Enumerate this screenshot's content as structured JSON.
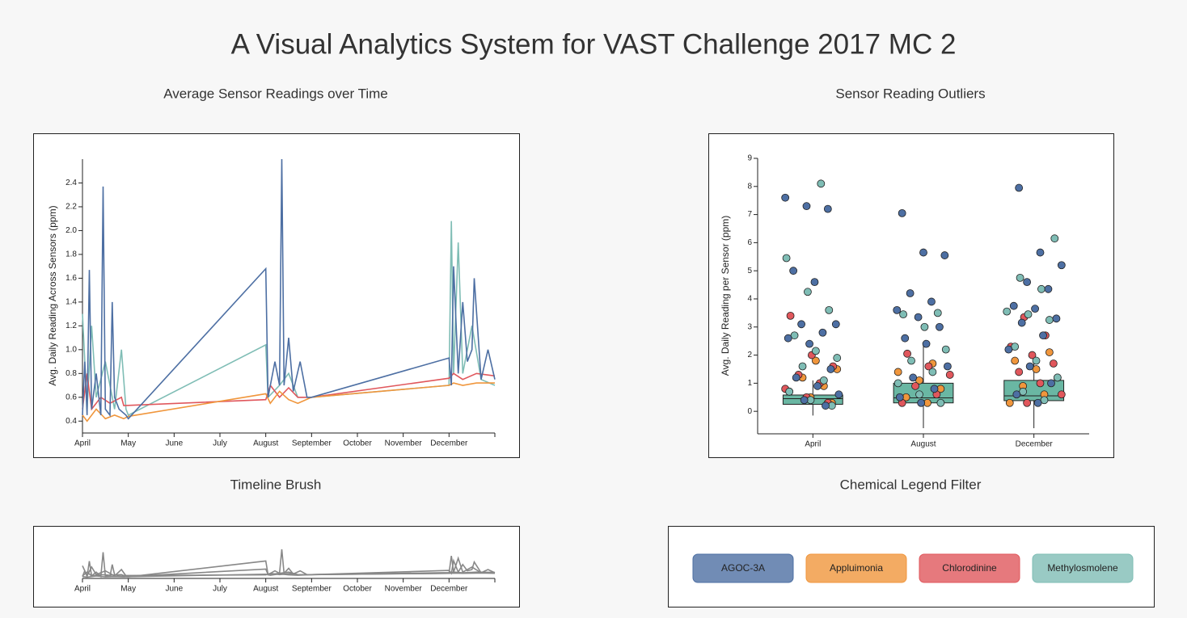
{
  "title": "A Visual Analytics System for VAST Challenge 2017 MC 2",
  "chart_data": [
    {
      "type": "line",
      "title": "Average Sensor Readings over Time",
      "y_label": "Avg. Daily Reading Across Sensors (ppm)",
      "xlim": [
        0,
        9
      ],
      "xticks": [
        {
          "value": 0,
          "label": "April"
        },
        {
          "value": 1,
          "label": "May"
        },
        {
          "value": 2,
          "label": "June"
        },
        {
          "value": 3,
          "label": "July"
        },
        {
          "value": 4,
          "label": "August"
        },
        {
          "value": 5,
          "label": "September"
        },
        {
          "value": 6,
          "label": "October"
        },
        {
          "value": 7,
          "label": "November"
        },
        {
          "value": 8,
          "label": "December"
        }
      ],
      "ylim": [
        0.3,
        2.6
      ],
      "yticks": [
        0.4,
        0.6,
        0.8,
        {
          "value": 1.0,
          "label": "1.0"
        },
        1.2,
        1.4,
        1.6,
        1.8,
        {
          "value": 2.0,
          "label": "2.0"
        },
        2.2,
        2.4
      ],
      "series": [
        {
          "name": "AGOC-3A",
          "color": "#4d6fa3",
          "x": [
            0,
            0.05,
            0.1,
            0.15,
            0.2,
            0.3,
            0.4,
            0.45,
            0.5,
            0.6,
            0.65,
            0.7,
            0.8,
            0.95,
            1.0,
            4.0,
            4.05,
            4.2,
            4.3,
            4.35,
            4.4,
            4.5,
            4.6,
            4.75,
            4.9,
            5.0,
            8.0,
            8.05,
            8.1,
            8.2,
            8.3,
            8.4,
            8.5,
            8.55,
            8.7,
            8.85,
            9.0
          ],
          "values": [
            0.45,
            0.9,
            0.45,
            1.67,
            0.5,
            0.8,
            0.45,
            2.37,
            0.5,
            0.45,
            1.4,
            0.6,
            0.5,
            0.45,
            0.42,
            1.68,
            0.6,
            0.9,
            0.7,
            2.6,
            0.7,
            1.1,
            0.65,
            0.9,
            0.6,
            0.6,
            0.93,
            0.7,
            1.7,
            0.8,
            1.4,
            0.9,
            1.0,
            1.6,
            0.75,
            1.0,
            0.75
          ]
        },
        {
          "name": "Appluimonia",
          "color": "#f0963c",
          "x": [
            0,
            0.1,
            0.3,
            0.5,
            0.7,
            0.9,
            1.0,
            4.0,
            4.1,
            4.3,
            4.5,
            4.7,
            5.0,
            8.0,
            8.1,
            8.3,
            8.6,
            9.0
          ],
          "values": [
            0.45,
            0.4,
            0.5,
            0.42,
            0.45,
            0.42,
            0.44,
            0.63,
            0.55,
            0.65,
            0.58,
            0.55,
            0.6,
            0.7,
            0.72,
            0.7,
            0.72,
            0.72
          ]
        },
        {
          "name": "Chlorodinine",
          "color": "#e0575c",
          "x": [
            0,
            0.1,
            0.2,
            0.4,
            0.6,
            0.85,
            0.9,
            4.0,
            4.1,
            4.3,
            4.5,
            4.7,
            5.0,
            8.0,
            8.1,
            8.3,
            8.6,
            9.0
          ],
          "values": [
            0.5,
            0.8,
            0.5,
            0.6,
            0.55,
            0.6,
            0.53,
            0.58,
            0.7,
            0.6,
            0.68,
            0.6,
            0.6,
            0.76,
            0.8,
            0.75,
            0.8,
            0.78
          ]
        },
        {
          "name": "Methylosmolene",
          "color": "#7fbdb5",
          "x": [
            0,
            0.1,
            0.2,
            0.3,
            0.5,
            0.7,
            0.85,
            0.95,
            1.0,
            4.0,
            4.05,
            4.3,
            4.5,
            4.7,
            5.0,
            8.0,
            8.05,
            8.1,
            8.2,
            8.3,
            8.5,
            8.7,
            9.0
          ],
          "values": [
            1.3,
            0.5,
            1.2,
            0.6,
            0.9,
            0.5,
            1.0,
            0.5,
            0.45,
            1.04,
            0.6,
            0.7,
            0.8,
            0.6,
            0.6,
            0.7,
            2.08,
            0.8,
            1.9,
            0.8,
            1.2,
            0.75,
            0.7
          ]
        }
      ]
    },
    {
      "type": "box",
      "title": "Sensor Reading Outliers",
      "y_label": "Avg. Daily Reading per Sensor (ppm)",
      "categories": [
        "April",
        "August",
        "December"
      ],
      "ylim": [
        -0.8,
        9
      ],
      "yticks": [
        0,
        1,
        2,
        3,
        4,
        5,
        6,
        7,
        8,
        9
      ],
      "box_color": "#6ab7a3",
      "boxes": [
        {
          "whisker_low": -0.15,
          "q1": 0.25,
          "median": 0.45,
          "q3": 0.58,
          "whisker_high": 1.1
        },
        {
          "whisker_low": -0.6,
          "q1": 0.3,
          "median": 0.48,
          "q3": 1.0,
          "whisker_high": 2.4
        },
        {
          "whisker_low": -0.6,
          "q1": 0.38,
          "median": 0.55,
          "q3": 1.1,
          "whisker_high": 2.1
        }
      ],
      "series": [
        {
          "color": "#4d6fa3",
          "values": [
            [
              7.6,
              7.3,
              7.2,
              5.0,
              4.6,
              3.1,
              3.1,
              2.8,
              2.6,
              2.4,
              1.5,
              1.2,
              0.9,
              0.6,
              0.4,
              0.2
            ],
            [
              7.05,
              5.65,
              5.55,
              4.2,
              3.9,
              3.6,
              3.35,
              3.0,
              2.6,
              2.4,
              1.6,
              1.2,
              0.8,
              0.5,
              0.3
            ],
            [
              7.95,
              5.65,
              5.2,
              4.6,
              4.35,
              3.75,
              3.65,
              3.3,
              3.15,
              2.7,
              2.2,
              1.6,
              1.0,
              0.6,
              0.3
            ]
          ]
        },
        {
          "color": "#f0963c",
          "values": [
            [
              1.8,
              1.5,
              1.2,
              0.9,
              0.7,
              0.5,
              0.3
            ],
            [
              1.7,
              1.4,
              1.1,
              0.8,
              0.5,
              0.3
            ],
            [
              2.1,
              1.8,
              1.5,
              1.2,
              0.9,
              0.6,
              0.3
            ]
          ]
        },
        {
          "color": "#e0575c",
          "values": [
            [
              3.4,
              2.0,
              1.6,
              1.3,
              1.0,
              0.8,
              0.5,
              0.3
            ],
            [
              2.05,
              1.6,
              1.3,
              0.9,
              0.6,
              0.3
            ],
            [
              3.35,
              2.7,
              2.3,
              2.0,
              1.7,
              1.4,
              1.0,
              0.6,
              0.3
            ]
          ]
        },
        {
          "color": "#7fbdb5",
          "values": [
            [
              8.1,
              5.45,
              4.25,
              3.6,
              2.7,
              2.15,
              1.9,
              1.6,
              1.1,
              0.7,
              0.4,
              0.2
            ],
            [
              3.5,
              3.45,
              3.0,
              2.2,
              1.8,
              1.4,
              1.0,
              0.6,
              0.3
            ],
            [
              6.15,
              4.75,
              4.35,
              3.55,
              3.45,
              3.25,
              2.3,
              1.8,
              1.2,
              0.7,
              0.4
            ]
          ]
        }
      ]
    },
    {
      "type": "brush",
      "title": "Timeline Brush",
      "color": "#888888"
    }
  ],
  "legend_filter": {
    "title": "Chemical Legend Filter"
  }
}
